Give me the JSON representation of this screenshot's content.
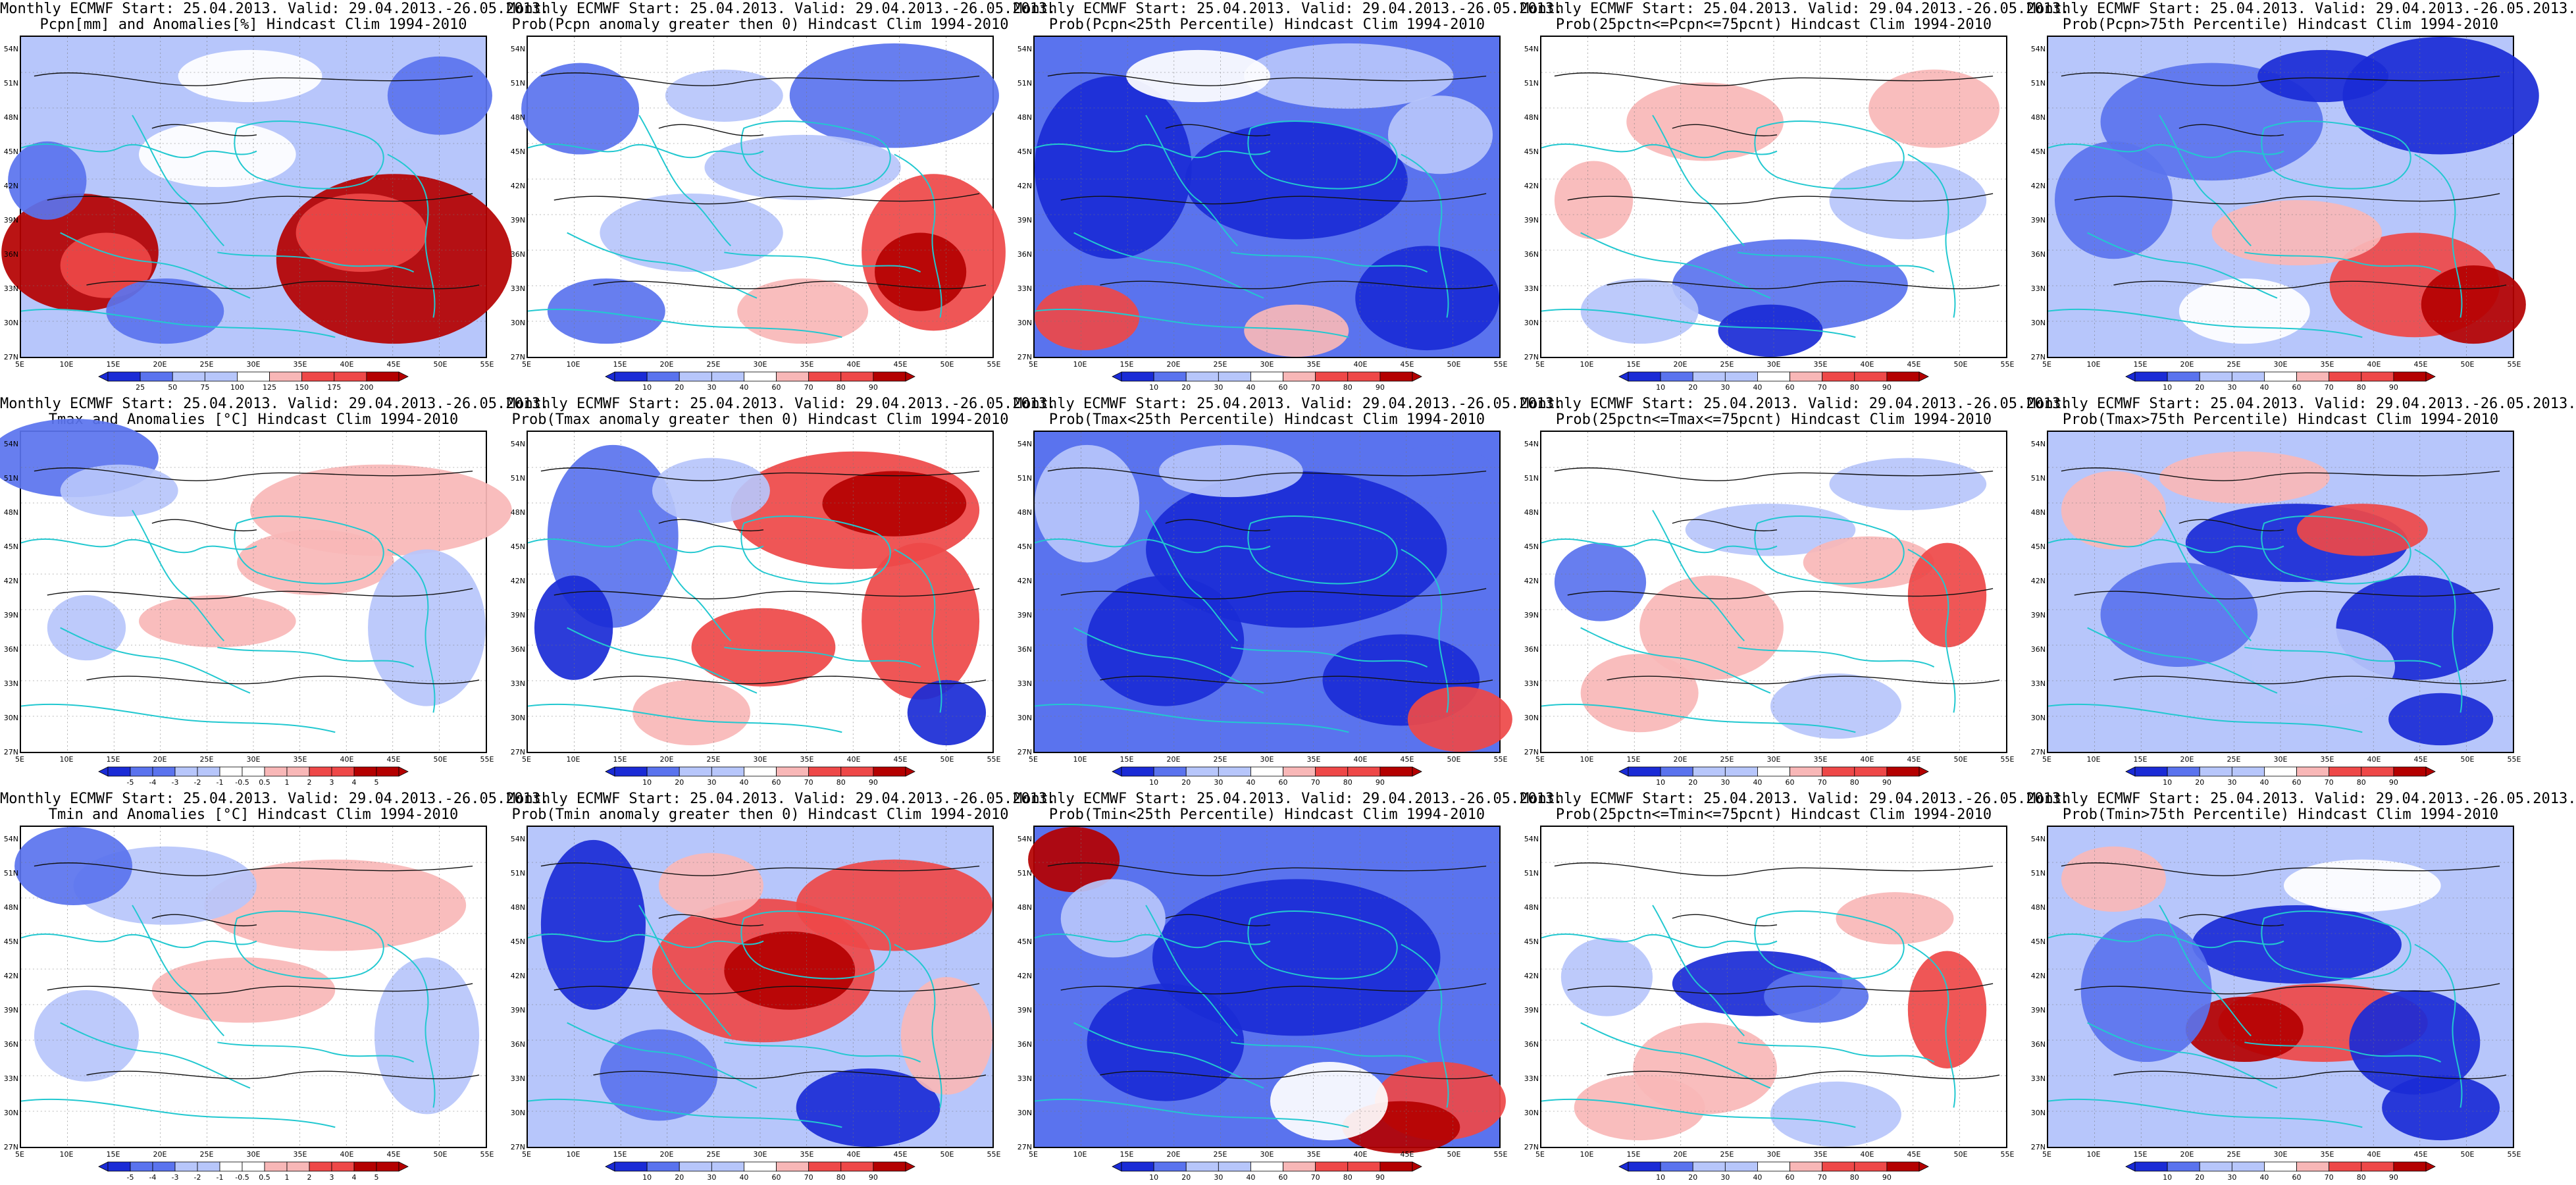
{
  "colors": {
    "blue_dark": "#1a2bd6",
    "blue_mid": "#5a73ee",
    "blue_light": "#b7c6fb",
    "white": "#ffffff",
    "red_light": "#f8b7b7",
    "red_mid": "#ee4848",
    "red_dark": "#b40000",
    "coast": "#22c8d0",
    "contour": "#111111"
  },
  "axes": {
    "lat_labels": [
      "54N",
      "51N",
      "48N",
      "45N",
      "42N",
      "39N",
      "36N",
      "33N",
      "30N",
      "27N"
    ],
    "lon_labels": [
      "5E",
      "10E",
      "15E",
      "20E",
      "25E",
      "30E",
      "35E",
      "40E",
      "45E",
      "50E",
      "55E"
    ]
  },
  "panels": [
    {
      "title1": "Monthly ECMWF Start: 25.04.2013. Valid: 29.04.2013.-26.05.2013.",
      "title2": "Pcpn[mm] and Anomalies[%] Hindcast Clim 1994-2010",
      "colorbar": [
        "25",
        "50",
        "75",
        "100",
        "125",
        "150",
        "175",
        "200"
      ],
      "pattern": "pcpn_anom"
    },
    {
      "title1": "Monthly ECMWF Start: 25.04.2013. Valid: 29.04.2013.-26.05.2013.",
      "title2": "Prob(Pcpn anomaly greater then 0) Hindcast Clim 1994-2010",
      "colorbar": [
        "10",
        "20",
        "30",
        "40",
        "60",
        "70",
        "80",
        "90"
      ],
      "pattern": "pcpn_pos"
    },
    {
      "title1": "Monthly ECMWF Start: 25.04.2013. Valid: 29.04.2013.-26.05.2013.",
      "title2": "Prob(Pcpn<25th Percentile) Hindcast Clim 1994-2010",
      "colorbar": [
        "10",
        "20",
        "30",
        "40",
        "60",
        "70",
        "80",
        "90"
      ],
      "pattern": "pcpn_low"
    },
    {
      "title1": "Monthly ECMWF Start: 25.04.2013. Valid: 29.04.2013.-26.05.2013.",
      "title2": "Prob(25pctn<=Pcpn<=75pcnt) Hindcast Clim 1994-2010",
      "colorbar": [
        "10",
        "20",
        "30",
        "40",
        "60",
        "70",
        "80",
        "90"
      ],
      "pattern": "pcpn_mid"
    },
    {
      "title1": "Monthly ECMWF Start: 25.04.2013. Valid: 29.04.2013.-26.05.2013.",
      "title2": "Prob(Pcpn>75th Percentile) Hindcast Clim 1994-2010",
      "colorbar": [
        "10",
        "20",
        "30",
        "40",
        "60",
        "70",
        "80",
        "90"
      ],
      "pattern": "pcpn_high"
    },
    {
      "title1": "Monthly ECMWF Start: 25.04.2013. Valid: 29.04.2013.-26.05.2013.",
      "title2": "Tmax and Anomalies [°C] Hindcast Clim 1994-2010",
      "colorbar": [
        "-5",
        "-4",
        "-3",
        "-2",
        "-1",
        "-0.5",
        "0.5",
        "1",
        "2",
        "3",
        "4",
        "5"
      ],
      "pattern": "tmax_anom"
    },
    {
      "title1": "Monthly ECMWF Start: 25.04.2013. Valid: 29.04.2013.-26.05.2013.",
      "title2": "Prob(Tmax anomaly greater then 0) Hindcast Clim 1994-2010",
      "colorbar": [
        "10",
        "20",
        "30",
        "40",
        "60",
        "70",
        "80",
        "90"
      ],
      "pattern": "tmax_pos"
    },
    {
      "title1": "Monthly ECMWF Start: 25.04.2013. Valid: 29.04.2013.-26.05.2013.",
      "title2": "Prob(Tmax<25th Percentile) Hindcast Clim 1994-2010",
      "colorbar": [
        "10",
        "20",
        "30",
        "40",
        "60",
        "70",
        "80",
        "90"
      ],
      "pattern": "tmax_low"
    },
    {
      "title1": "Monthly ECMWF Start: 25.04.2013. Valid: 29.04.2013.-26.05.2013.",
      "title2": "Prob(25pctn<=Tmax<=75pcnt) Hindcast Clim 1994-2010",
      "colorbar": [
        "10",
        "20",
        "30",
        "40",
        "60",
        "70",
        "80",
        "90"
      ],
      "pattern": "tmax_mid"
    },
    {
      "title1": "Monthly ECMWF Start: 25.04.2013. Valid: 29.04.2013.-26.05.2013.",
      "title2": "Prob(Tmax>75th Percentile) Hindcast Clim 1994-2010",
      "colorbar": [
        "10",
        "20",
        "30",
        "40",
        "60",
        "70",
        "80",
        "90"
      ],
      "pattern": "tmax_high"
    },
    {
      "title1": "Monthly ECMWF Start: 25.04.2013. Valid: 29.04.2013.-26.05.2013.",
      "title2": "Tmin and Anomalies [°C] Hindcast Clim 1994-2010",
      "colorbar": [
        "-5",
        "-4",
        "-3",
        "-2",
        "-1",
        "-0.5",
        "0.5",
        "1",
        "2",
        "3",
        "4",
        "5"
      ],
      "pattern": "tmin_anom"
    },
    {
      "title1": "Monthly ECMWF Start: 25.04.2013. Valid: 29.04.2013.-26.05.2013.",
      "title2": "Prob(Tmin anomaly greater then 0) Hindcast Clim 1994-2010",
      "colorbar": [
        "10",
        "20",
        "30",
        "40",
        "60",
        "70",
        "80",
        "90"
      ],
      "pattern": "tmin_pos"
    },
    {
      "title1": "Monthly ECMWF Start: 25.04.2013. Valid: 29.04.2013.-26.05.2013.",
      "title2": "Prob(Tmin<25th Percentile) Hindcast Clim 1994-2010",
      "colorbar": [
        "10",
        "20",
        "30",
        "40",
        "60",
        "70",
        "80",
        "90"
      ],
      "pattern": "tmin_low"
    },
    {
      "title1": "Monthly ECMWF Start: 25.04.2013. Valid: 29.04.2013.-26.05.2013.",
      "title2": "Prob(25pctn<=Tmin<=75pcnt) Hindcast Clim 1994-2010",
      "colorbar": [
        "10",
        "20",
        "30",
        "40",
        "60",
        "70",
        "80",
        "90"
      ],
      "pattern": "tmin_mid"
    },
    {
      "title1": "Monthly ECMWF Start: 25.04.2013. Valid: 29.04.2013.-26.05.2013.",
      "title2": "Prob(Tmin>75th Percentile) Hindcast Clim 1994-2010",
      "colorbar": [
        "10",
        "20",
        "30",
        "40",
        "60",
        "70",
        "80",
        "90"
      ],
      "pattern": "tmin_high"
    }
  ]
}
